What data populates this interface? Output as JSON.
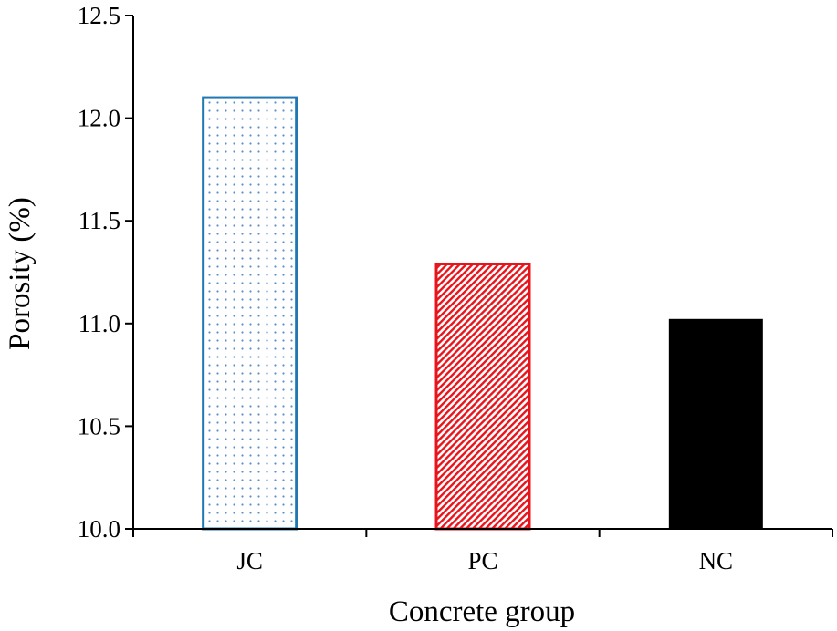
{
  "chart_data": {
    "type": "bar",
    "categories": [
      "JC",
      "PC",
      "NC"
    ],
    "values": [
      12.1,
      11.29,
      11.02
    ],
    "xlabel": "Concrete group",
    "ylabel": "Porosity (%)",
    "ylim": [
      10.0,
      12.5
    ],
    "yticks": [
      "10.0",
      "10.5",
      "11.0",
      "11.5",
      "12.0",
      "12.5"
    ],
    "grid": false,
    "legend": "none",
    "bar_styles": [
      {
        "pattern": "dots",
        "color": "#1f77b4"
      },
      {
        "pattern": "diagonal-hatch",
        "color": "#e8141b"
      },
      {
        "pattern": "solid",
        "color": "#000000"
      }
    ]
  }
}
